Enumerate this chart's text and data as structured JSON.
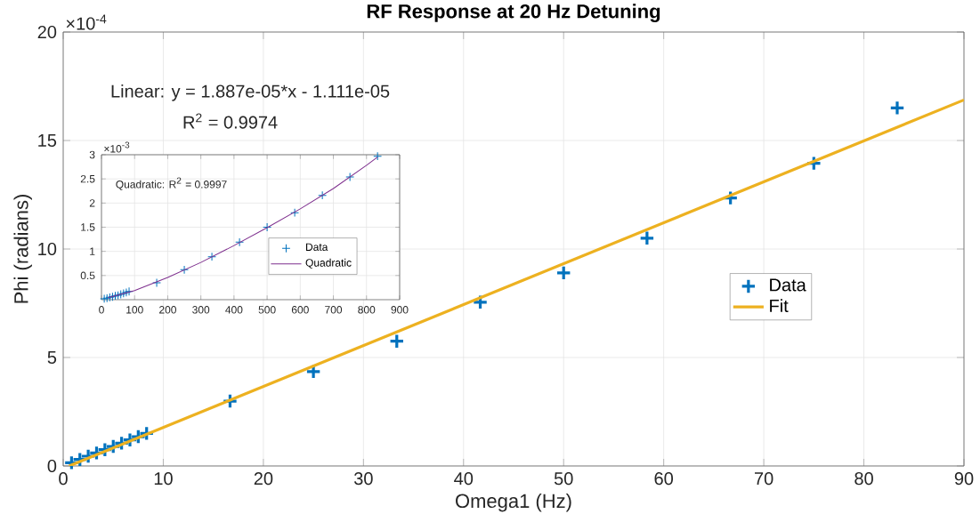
{
  "chart_data": [
    {
      "type": "scatter",
      "title": "RF Response at 20 Hz Detuning",
      "xlabel": "Omega1 (Hz)",
      "ylabel": "Phi (radians)",
      "xlim": [
        0,
        90
      ],
      "ylim": [
        0,
        20
      ],
      "xticks": [
        0,
        10,
        20,
        30,
        40,
        50,
        60,
        70,
        80,
        90
      ],
      "yticks": [
        0,
        5,
        10,
        15,
        20
      ],
      "grid": true,
      "legend": "right",
      "annotations": [
        "×10$^{-4}$",
        "Linear:  y = 1.887e-05*x - 1.111e-05",
        "R$^{2}$ = 0.9974"
      ],
      "series": [
        {
          "name": "Data",
          "marker": "cross",
          "color": "#0072bd",
          "x": [
            0.833,
            1.667,
            2.5,
            3.333,
            4.167,
            5,
            5.833,
            6.667,
            7.5,
            8.333,
            16.67,
            25,
            33.33,
            41.67,
            50,
            58.33,
            66.67,
            75,
            83.33
          ],
          "values": [
            0.15,
            0.3,
            0.45,
            0.6,
            0.75,
            0.9,
            1.05,
            1.2,
            1.35,
            1.5,
            2.99,
            4.35,
            5.75,
            7.55,
            8.9,
            10.5,
            12.35,
            13.95,
            16.5
          ]
        },
        {
          "name": "Fit",
          "type": "line",
          "color": "#edb120",
          "x": [
            0.59,
            90
          ],
          "values": [
            0,
            16.87
          ]
        }
      ]
    },
    {
      "type": "scatter",
      "xlim": [
        0,
        900
      ],
      "ylim": [
        0,
        3
      ],
      "xticks": [
        0,
        100,
        200,
        300,
        400,
        500,
        600,
        700,
        800,
        900
      ],
      "yticks": [
        0.5,
        1,
        1.5,
        2,
        2.5,
        3
      ],
      "grid": true,
      "legend": "bottom right",
      "annotations": [
        "×10$^{-3}$",
        "Quadratic: R$^{2}$ = 0.9997"
      ],
      "series": [
        {
          "name": "Data",
          "marker": "cross",
          "color": "#0072bd",
          "x": [
            8.33,
            16.67,
            25,
            33.33,
            41.67,
            50,
            58.33,
            66.67,
            75,
            83.33,
            166.7,
            250,
            333.3,
            416.7,
            500,
            583.3,
            666.7,
            750,
            833.3
          ],
          "values": [
            0.02,
            0.03,
            0.05,
            0.06,
            0.08,
            0.09,
            0.11,
            0.13,
            0.15,
            0.17,
            0.35,
            0.62,
            0.89,
            1.19,
            1.5,
            1.8,
            2.16,
            2.54,
            2.97
          ]
        },
        {
          "name": "Quadratic",
          "type": "line",
          "color": "#7e2f8e",
          "x": [
            20,
            100,
            200,
            300,
            400,
            500,
            600,
            700,
            800,
            833.3
          ],
          "values": [
            0.04,
            0.19,
            0.46,
            0.77,
            1.12,
            1.49,
            1.88,
            2.3,
            2.78,
            2.95
          ]
        }
      ]
    }
  ]
}
